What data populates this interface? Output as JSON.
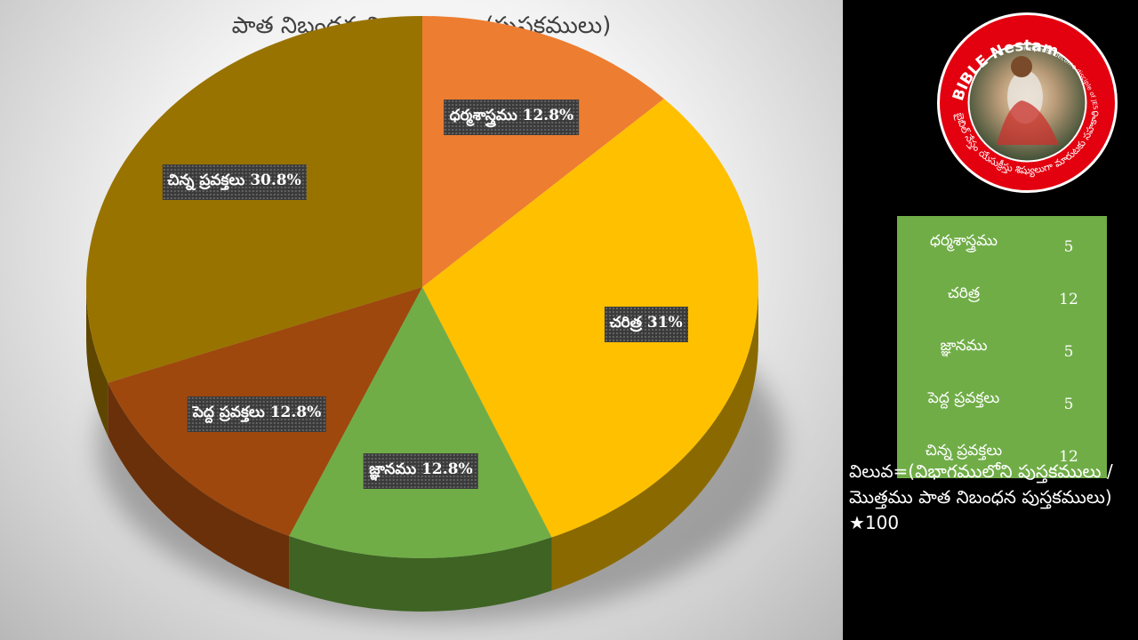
{
  "chart_data": {
    "type": "pie",
    "title": "పాత నిబంధన విభాగములు (పుస్తకములు)",
    "categories": [
      "ధర్మశాస్త్రము",
      "చరిత్ర",
      "జ్ఞానము",
      "పెద్ద ప్రవక్తలు",
      "చిన్న ప్రవక్తలు"
    ],
    "values": [
      12.8,
      31,
      12.8,
      12.8,
      30.8
    ],
    "data_labels": [
      "ధర్మశాస్త్రము 12.8%",
      "చరిత్ర 31%",
      "జ్ఞానము 12.8%",
      "పెద్ద ప్రవక్తలు 12.8%",
      "చిన్న ప్రవక్తలు 30.8%"
    ],
    "colors": [
      "#ed7d31",
      "#ffc000",
      "#70ad47",
      "#9e480e",
      "#997300"
    ],
    "side_colors": [
      "#9a5120",
      "#8a6a00",
      "#3e6323",
      "#6a300a",
      "#5e4600"
    ],
    "style": "3d-pie"
  },
  "logo": {
    "title": "BIBLE Nestam",
    "tagline": "Helper to become disciple of JESUS CHRIST",
    "telugu_text": "బైబిల్ నేస్తం యేసుక్రీస్తు శిష్యులుగా మారుటకు సహకారి",
    "colors": {
      "ring": "#e3000f",
      "text": "#ffffff"
    }
  },
  "table": {
    "rows": [
      {
        "category": "ధర్మశాస్త్రము",
        "count": "5"
      },
      {
        "category": "చరిత్ర",
        "count": "12"
      },
      {
        "category": "జ్ఞానము",
        "count": "5"
      },
      {
        "category": "పెద్ద ప్రవక్తలు",
        "count": "5"
      },
      {
        "category": "చిన్న ప్రవక్తలు",
        "count": "12"
      }
    ],
    "background": "#70ad47"
  },
  "formula": "విలువ=(విభాగములోని పుస్తకములు / మొత్తము పాత నిబంధన పుస్తకములు) ★100"
}
